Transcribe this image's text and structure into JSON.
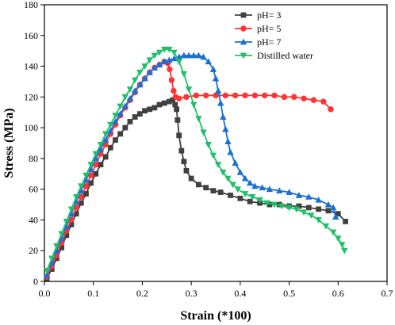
{
  "chart_data": {
    "type": "line",
    "xlabel": "Strain (*100)",
    "ylabel": "Stress (MPa)",
    "xlim": [
      0.0,
      0.7
    ],
    "ylim": [
      0,
      180
    ],
    "x_ticks": [
      "0.0",
      "0.1",
      "0.2",
      "0.3",
      "0.4",
      "0.5",
      "0.6",
      "0.7"
    ],
    "y_ticks": [
      "0",
      "20",
      "40",
      "60",
      "80",
      "100",
      "120",
      "140",
      "160",
      "180"
    ],
    "grid": false,
    "legend_position": "top-right",
    "series": [
      {
        "name": "pH= 3",
        "color": "#404040",
        "marker": "square",
        "points": [
          [
            0.005,
            2
          ],
          [
            0.015,
            8
          ],
          [
            0.025,
            15
          ],
          [
            0.035,
            22
          ],
          [
            0.045,
            30
          ],
          [
            0.055,
            37
          ],
          [
            0.065,
            44
          ],
          [
            0.075,
            51
          ],
          [
            0.085,
            57
          ],
          [
            0.095,
            64
          ],
          [
            0.105,
            70
          ],
          [
            0.115,
            76
          ],
          [
            0.125,
            81
          ],
          [
            0.135,
            87
          ],
          [
            0.145,
            92
          ],
          [
            0.155,
            96
          ],
          [
            0.165,
            100
          ],
          [
            0.175,
            104
          ],
          [
            0.185,
            107
          ],
          [
            0.195,
            109
          ],
          [
            0.205,
            111
          ],
          [
            0.215,
            112
          ],
          [
            0.225,
            113
          ],
          [
            0.235,
            115
          ],
          [
            0.245,
            116
          ],
          [
            0.255,
            117
          ],
          [
            0.262,
            118
          ],
          [
            0.267,
            115
          ],
          [
            0.27,
            112
          ],
          [
            0.272,
            105
          ],
          [
            0.275,
            95
          ],
          [
            0.28,
            85
          ],
          [
            0.285,
            78
          ],
          [
            0.29,
            72
          ],
          [
            0.3,
            67
          ],
          [
            0.315,
            63
          ],
          [
            0.33,
            61
          ],
          [
            0.345,
            59
          ],
          [
            0.36,
            58
          ],
          [
            0.38,
            56
          ],
          [
            0.4,
            54
          ],
          [
            0.42,
            52
          ],
          [
            0.44,
            51
          ],
          [
            0.46,
            50
          ],
          [
            0.48,
            50
          ],
          [
            0.5,
            49
          ],
          [
            0.52,
            49
          ],
          [
            0.54,
            48
          ],
          [
            0.56,
            47
          ],
          [
            0.58,
            46
          ],
          [
            0.6,
            44
          ],
          [
            0.615,
            39
          ]
        ]
      },
      {
        "name": "pH= 5",
        "color": "#ff3333",
        "marker": "circle",
        "points": [
          [
            0.005,
            3
          ],
          [
            0.015,
            10
          ],
          [
            0.025,
            17
          ],
          [
            0.035,
            25
          ],
          [
            0.045,
            33
          ],
          [
            0.055,
            40
          ],
          [
            0.065,
            48
          ],
          [
            0.075,
            55
          ],
          [
            0.085,
            62
          ],
          [
            0.095,
            69
          ],
          [
            0.105,
            76
          ],
          [
            0.115,
            83
          ],
          [
            0.125,
            89
          ],
          [
            0.135,
            96
          ],
          [
            0.145,
            102
          ],
          [
            0.155,
            108
          ],
          [
            0.165,
            113
          ],
          [
            0.175,
            118
          ],
          [
            0.185,
            123
          ],
          [
            0.195,
            128
          ],
          [
            0.205,
            132
          ],
          [
            0.215,
            136
          ],
          [
            0.225,
            139
          ],
          [
            0.235,
            141
          ],
          [
            0.245,
            143
          ],
          [
            0.252,
            142
          ],
          [
            0.256,
            138
          ],
          [
            0.26,
            131
          ],
          [
            0.264,
            124
          ],
          [
            0.268,
            120
          ],
          [
            0.275,
            119
          ],
          [
            0.29,
            120
          ],
          [
            0.31,
            121
          ],
          [
            0.33,
            121
          ],
          [
            0.35,
            121
          ],
          [
            0.37,
            121
          ],
          [
            0.39,
            121
          ],
          [
            0.41,
            121
          ],
          [
            0.43,
            121
          ],
          [
            0.45,
            121
          ],
          [
            0.47,
            121
          ],
          [
            0.49,
            120
          ],
          [
            0.51,
            120
          ],
          [
            0.53,
            119
          ],
          [
            0.55,
            118
          ],
          [
            0.57,
            117
          ],
          [
            0.585,
            112
          ]
        ]
      },
      {
        "name": "pH= 7",
        "color": "#1a6fd6",
        "marker": "triangle-up",
        "points": [
          [
            0.005,
            4
          ],
          [
            0.015,
            12
          ],
          [
            0.025,
            20
          ],
          [
            0.035,
            28
          ],
          [
            0.045,
            36
          ],
          [
            0.055,
            44
          ],
          [
            0.065,
            52
          ],
          [
            0.075,
            59
          ],
          [
            0.085,
            66
          ],
          [
            0.095,
            73
          ],
          [
            0.105,
            80
          ],
          [
            0.115,
            86
          ],
          [
            0.125,
            92
          ],
          [
            0.135,
            98
          ],
          [
            0.145,
            104
          ],
          [
            0.155,
            109
          ],
          [
            0.165,
            114
          ],
          [
            0.175,
            119
          ],
          [
            0.185,
            124
          ],
          [
            0.195,
            128
          ],
          [
            0.205,
            132
          ],
          [
            0.215,
            136
          ],
          [
            0.225,
            139
          ],
          [
            0.235,
            141
          ],
          [
            0.245,
            143
          ],
          [
            0.255,
            144
          ],
          [
            0.265,
            145
          ],
          [
            0.275,
            146
          ],
          [
            0.285,
            147
          ],
          [
            0.295,
            147
          ],
          [
            0.305,
            147
          ],
          [
            0.315,
            147
          ],
          [
            0.325,
            146
          ],
          [
            0.335,
            143
          ],
          [
            0.345,
            138
          ],
          [
            0.35,
            132
          ],
          [
            0.355,
            124
          ],
          [
            0.36,
            116
          ],
          [
            0.365,
            107
          ],
          [
            0.37,
            99
          ],
          [
            0.375,
            91
          ],
          [
            0.38,
            84
          ],
          [
            0.39,
            77
          ],
          [
            0.4,
            71
          ],
          [
            0.41,
            67
          ],
          [
            0.42,
            64
          ],
          [
            0.43,
            62
          ],
          [
            0.445,
            61
          ],
          [
            0.46,
            60
          ],
          [
            0.48,
            59
          ],
          [
            0.5,
            58
          ],
          [
            0.52,
            56
          ],
          [
            0.54,
            55
          ],
          [
            0.56,
            53
          ],
          [
            0.58,
            50
          ],
          [
            0.59,
            48
          ],
          [
            0.595,
            42
          ]
        ]
      },
      {
        "name": "Distilled water",
        "color": "#1fbf6a",
        "marker": "triangle-down",
        "points": [
          [
            0.005,
            7
          ],
          [
            0.015,
            15
          ],
          [
            0.025,
            23
          ],
          [
            0.035,
            31
          ],
          [
            0.045,
            39
          ],
          [
            0.055,
            47
          ],
          [
            0.065,
            55
          ],
          [
            0.075,
            62
          ],
          [
            0.085,
            69
          ],
          [
            0.095,
            76
          ],
          [
            0.105,
            83
          ],
          [
            0.115,
            89
          ],
          [
            0.125,
            96
          ],
          [
            0.135,
            102
          ],
          [
            0.145,
            108
          ],
          [
            0.155,
            114
          ],
          [
            0.165,
            120
          ],
          [
            0.175,
            125
          ],
          [
            0.185,
            131
          ],
          [
            0.195,
            136
          ],
          [
            0.205,
            140
          ],
          [
            0.215,
            144
          ],
          [
            0.225,
            147
          ],
          [
            0.235,
            149
          ],
          [
            0.245,
            151
          ],
          [
            0.255,
            151
          ],
          [
            0.265,
            149
          ],
          [
            0.275,
            143
          ],
          [
            0.285,
            135
          ],
          [
            0.295,
            125
          ],
          [
            0.305,
            115
          ],
          [
            0.315,
            106
          ],
          [
            0.325,
            97
          ],
          [
            0.335,
            89
          ],
          [
            0.345,
            82
          ],
          [
            0.355,
            76
          ],
          [
            0.365,
            71
          ],
          [
            0.375,
            67
          ],
          [
            0.385,
            63
          ],
          [
            0.395,
            60
          ],
          [
            0.41,
            57
          ],
          [
            0.425,
            55
          ],
          [
            0.44,
            53
          ],
          [
            0.455,
            51
          ],
          [
            0.47,
            50
          ],
          [
            0.485,
            49
          ],
          [
            0.5,
            48
          ],
          [
            0.515,
            47
          ],
          [
            0.53,
            45
          ],
          [
            0.545,
            43
          ],
          [
            0.56,
            40
          ],
          [
            0.575,
            36
          ],
          [
            0.59,
            32
          ],
          [
            0.6,
            28
          ],
          [
            0.608,
            24
          ],
          [
            0.613,
            20
          ]
        ]
      }
    ]
  }
}
